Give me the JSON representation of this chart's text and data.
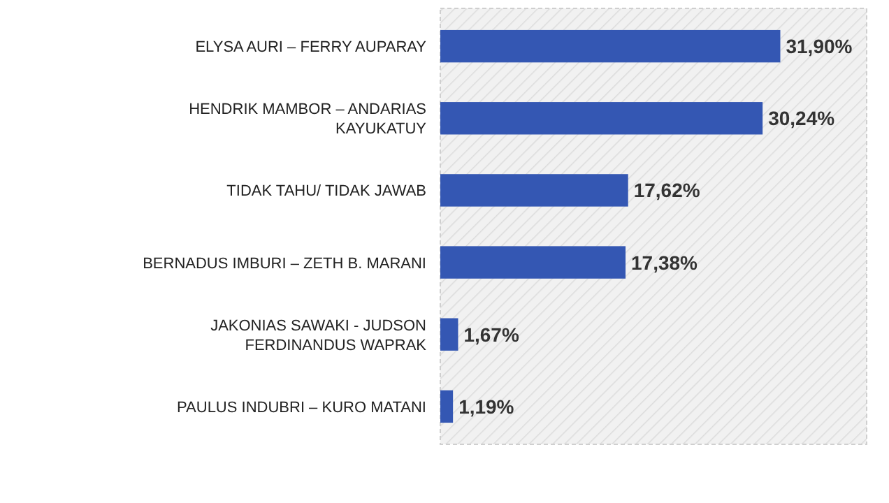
{
  "chart_data": {
    "type": "bar",
    "orientation": "horizontal",
    "categories": [
      "ELYSA AURI – FERRY AUPARAY",
      "HENDRIK MAMBOR – ANDARIAS KAYUKATUY",
      "TIDAK TAHU/ TIDAK JAWAB",
      "BERNADUS IMBURI – ZETH B. MARANI",
      "JAKONIAS SAWAKI -  JUDSON FERDINANDUS WAPRAK",
      "PAULUS INDUBRI – KURO MATANI"
    ],
    "values": [
      31.9,
      30.24,
      17.62,
      17.38,
      1.67,
      1.19
    ],
    "value_labels": [
      "31,90%",
      "30,24%",
      "17,62%",
      "17,38%",
      "1,67%",
      "1,19%"
    ],
    "color": "#3457b3",
    "xlim": [
      0,
      40
    ],
    "tick_labels": "y"
  }
}
